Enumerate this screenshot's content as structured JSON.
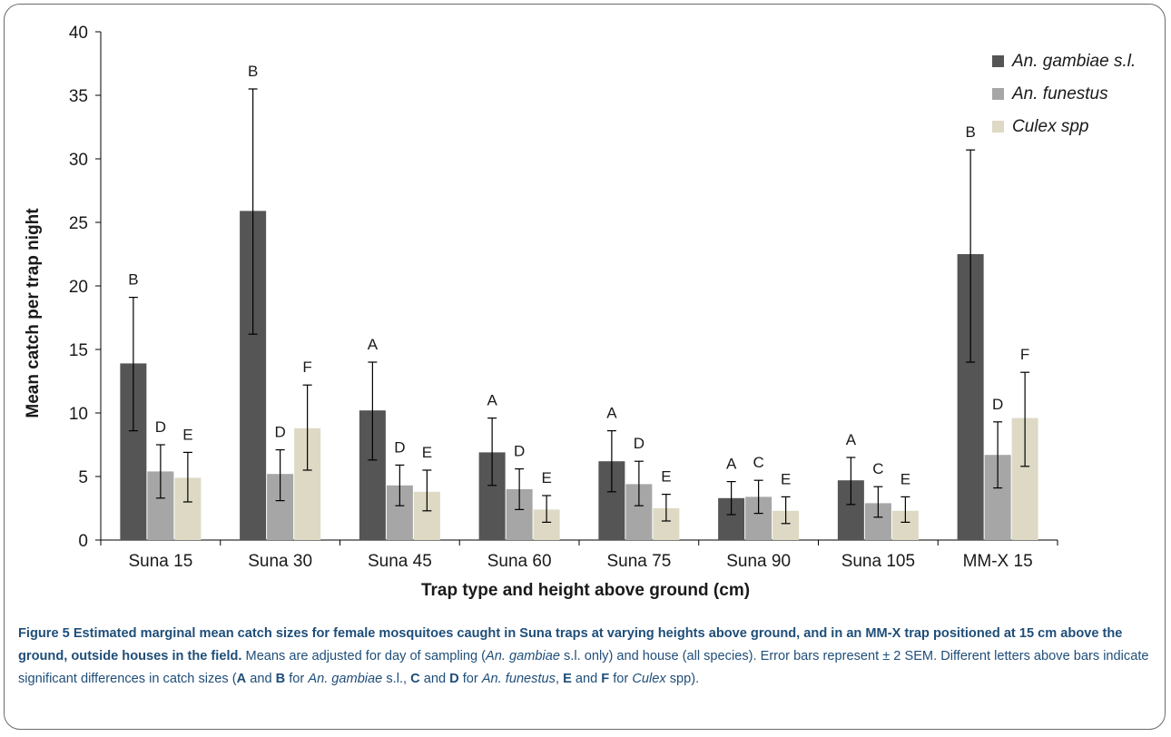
{
  "chart_data": {
    "type": "bar",
    "xlabel": "Trap type and height above ground (cm)",
    "ylabel": "Mean catch per trap night",
    "ylim": [
      0,
      40
    ],
    "yticks": [
      0,
      5,
      10,
      15,
      20,
      25,
      30,
      35,
      40
    ],
    "categories": [
      "Suna 15",
      "Suna 30",
      "Suna 45",
      "Suna 60",
      "Suna 75",
      "Suna 90",
      "Suna 105",
      "MM-X 15"
    ],
    "legend_position": "top-right",
    "series": [
      {
        "name": "An. gambiae s.l.",
        "color": "#555555",
        "values": [
          13.9,
          25.9,
          10.2,
          6.9,
          6.2,
          3.3,
          4.7,
          22.5
        ],
        "err_low": [
          8.6,
          16.2,
          6.3,
          4.3,
          3.8,
          2.0,
          2.8,
          14.0
        ],
        "err_high": [
          19.1,
          35.5,
          14.0,
          9.6,
          8.6,
          4.6,
          6.5,
          30.7
        ],
        "letters": [
          "B",
          "B",
          "A",
          "A",
          "A",
          "A",
          "A",
          "B"
        ]
      },
      {
        "name": "An. funestus",
        "color": "#a6a6a6",
        "values": [
          5.4,
          5.2,
          4.3,
          4.0,
          4.4,
          3.4,
          2.9,
          6.7
        ],
        "err_low": [
          3.3,
          3.1,
          2.7,
          2.4,
          2.7,
          2.1,
          1.8,
          4.1
        ],
        "err_high": [
          7.5,
          7.1,
          5.9,
          5.6,
          6.2,
          4.7,
          4.2,
          9.3
        ],
        "letters": [
          "D",
          "D",
          "D",
          "D",
          "D",
          "C",
          "C",
          "D"
        ]
      },
      {
        "name": "Culex spp",
        "color": "#ddd9c4",
        "values": [
          4.9,
          8.8,
          3.8,
          2.4,
          2.5,
          2.3,
          2.3,
          9.6
        ],
        "err_low": [
          3.0,
          5.5,
          2.3,
          1.4,
          1.5,
          1.3,
          1.4,
          5.8
        ],
        "err_high": [
          6.9,
          12.2,
          5.5,
          3.5,
          3.6,
          3.4,
          3.4,
          13.2
        ],
        "letters": [
          "E",
          "F",
          "E",
          "E",
          "E",
          "E",
          "E",
          "F"
        ]
      }
    ]
  },
  "caption": {
    "figure_label": "Figure 5",
    "title": " Estimated marginal mean catch sizes for female mosquitoes caught in Suna traps at varying heights above ground, and in an MM-X trap positioned at 15 cm above the ground, outside houses in the field.",
    "text_1": " Means are adjusted for day of sampling (",
    "italic_1": "An. gambiae",
    "text_2": " s.l. only) and house (all species). Error bars represent ± 2 SEM. Different letters above bars indicate significant differences in catch sizes (",
    "bold_A": "A",
    "text_3": " and ",
    "bold_B": "B",
    "text_4": " for ",
    "italic_2": "An. gambiae",
    "text_5": " s.l., ",
    "bold_C": "C",
    "text_6": " and ",
    "bold_D": "D",
    "text_7": " for ",
    "italic_3": "An. funestus",
    "text_8": ", ",
    "bold_E": "E",
    "text_9": " and ",
    "bold_F": "F",
    "text_10": " for ",
    "italic_4": "Culex",
    "text_11": " spp)."
  }
}
